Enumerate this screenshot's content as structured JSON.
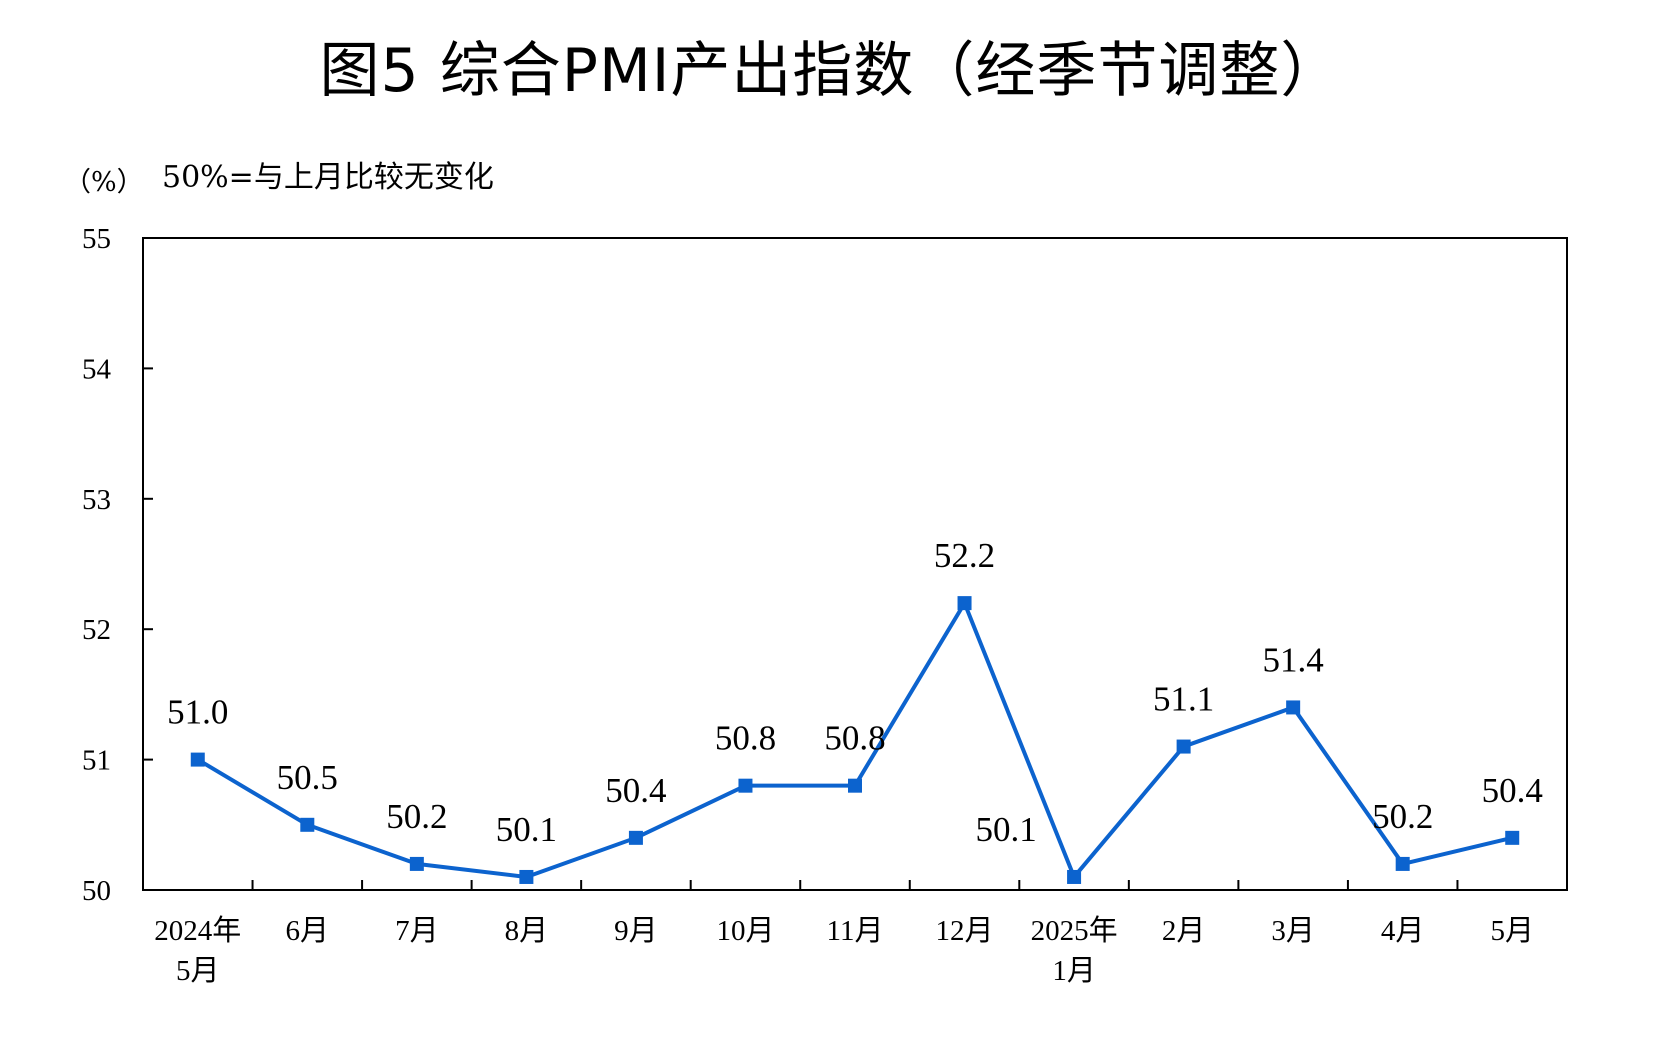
{
  "chart_data": {
    "type": "line",
    "title": "图5  综合PMI产出指数（经季节调整）",
    "y_unit": "（%）",
    "note": "50%=与上月比较无变化",
    "ylim": [
      50,
      55
    ],
    "yticks": [
      "50",
      "51",
      "52",
      "53",
      "54",
      "55"
    ],
    "categories": [
      [
        "2024年",
        "5月"
      ],
      [
        "6月"
      ],
      [
        "7月"
      ],
      [
        "8月"
      ],
      [
        "9月"
      ],
      [
        "10月"
      ],
      [
        "11月"
      ],
      [
        "12月"
      ],
      [
        "2025年",
        "1月"
      ],
      [
        "2月"
      ],
      [
        "3月"
      ],
      [
        "4月"
      ],
      [
        "5月"
      ]
    ],
    "series": [
      {
        "values": [
          51.0,
          50.5,
          50.2,
          50.1,
          50.4,
          50.8,
          50.8,
          52.2,
          50.1,
          51.1,
          51.4,
          50.2,
          50.4
        ],
        "labels": [
          "51.0",
          "50.5",
          "50.2",
          "50.1",
          "50.4",
          "50.8",
          "50.8",
          "52.2",
          "50.1",
          "51.1",
          "51.4",
          "50.2",
          "50.4"
        ],
        "color": "#0c63ce"
      }
    ],
    "grid": false,
    "legend": "none"
  }
}
